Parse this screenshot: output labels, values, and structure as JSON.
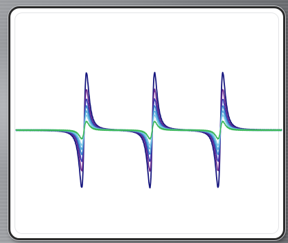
{
  "chart_data": {
    "type": "line",
    "title": "",
    "xlabel": "",
    "ylabel": "",
    "grid": false,
    "legend": "none",
    "axes_visible": false,
    "peak_centers": [
      1.0,
      2.0,
      3.0
    ],
    "peak_width": 0.06,
    "xlim": [
      0.0,
      3.9
    ],
    "ylim": [
      -1.0,
      1.0
    ],
    "series": [
      {
        "color": "#16167e",
        "amplitude": 1.0
      },
      {
        "color": "#6a2a8e",
        "amplitude": 0.71
      },
      {
        "color": "#3a3ab0",
        "amplitude": 0.54
      },
      {
        "color": "#3a86c8",
        "amplitude": 0.42
      },
      {
        "color": "#5aaedc",
        "amplitude": 0.33
      },
      {
        "color": "#84cae8",
        "amplitude": 0.26
      },
      {
        "color": "#3cb85a",
        "amplitude": 0.15
      }
    ]
  }
}
